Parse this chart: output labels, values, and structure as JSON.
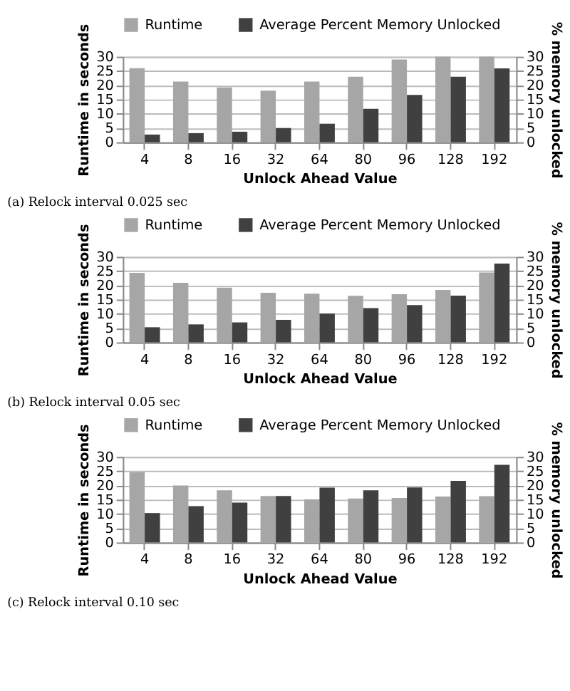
{
  "chart_data": [
    {
      "type": "bar",
      "categories": [
        "4",
        "8",
        "16",
        "32",
        "64",
        "80",
        "96",
        "128",
        "192"
      ],
      "xlabel": "Unlock Ahead Value",
      "ylabel": "Runtime in seconds",
      "y2label": "% memory unlocked",
      "ylim": [
        0,
        30
      ],
      "yticks": [
        0,
        5,
        10,
        15,
        20,
        25,
        30
      ],
      "y2lim": [
        0,
        30
      ],
      "y2ticks": [
        0,
        5,
        10,
        15,
        20,
        25,
        30
      ],
      "grid": "y",
      "legend": "top",
      "annotations": [
        "(a) Relock interval 0.025 sec"
      ],
      "series": [
        {
          "name": "Runtime",
          "color": "#a6a6a6",
          "values": [
            26,
            21.3,
            19.2,
            18.1,
            21.3,
            23,
            29,
            30,
            30
          ]
        },
        {
          "name": "Average Percent Memory Unlocked",
          "color": "#404040",
          "axis": "y2",
          "values": [
            2.7,
            3.2,
            3.7,
            5,
            6.5,
            11.7,
            16.6,
            23,
            25.9
          ]
        }
      ]
    },
    {
      "type": "bar",
      "categories": [
        "4",
        "8",
        "16",
        "32",
        "64",
        "80",
        "96",
        "128",
        "192"
      ],
      "xlabel": "Unlock Ahead Value",
      "ylabel": "Runtime in seconds",
      "y2label": "% memory unlocked",
      "ylim": [
        0,
        30
      ],
      "yticks": [
        0,
        5,
        10,
        15,
        20,
        25,
        30
      ],
      "y2lim": [
        0,
        30
      ],
      "y2ticks": [
        0,
        5,
        10,
        15,
        20,
        25,
        30
      ],
      "grid": "y",
      "legend": "top",
      "annotations": [
        "(b) Relock interval 0.05 sec"
      ],
      "series": [
        {
          "name": "Runtime",
          "color": "#a6a6a6",
          "values": [
            24.4,
            20.9,
            19.2,
            17.4,
            17.1,
            16.3,
            16.9,
            18.4,
            24.5
          ]
        },
        {
          "name": "Average Percent Memory Unlocked",
          "color": "#404040",
          "axis": "y2",
          "values": [
            5.3,
            6.3,
            7,
            7.9,
            10.1,
            12,
            13.1,
            16.4,
            27.6
          ]
        }
      ]
    },
    {
      "type": "bar",
      "categories": [
        "4",
        "8",
        "16",
        "32",
        "64",
        "80",
        "96",
        "128",
        "192"
      ],
      "xlabel": "Unlock Ahead Value",
      "ylabel": "Runtime in seconds",
      "y2label": "% memory unlocked",
      "ylim": [
        0,
        30
      ],
      "yticks": [
        0,
        5,
        10,
        15,
        20,
        25,
        30
      ],
      "y2lim": [
        0,
        30
      ],
      "y2ticks": [
        0,
        5,
        10,
        15,
        20,
        25,
        30
      ],
      "grid": "y",
      "legend": "top",
      "annotations": [
        "(c) Relock interval 0.10 sec"
      ],
      "series": [
        {
          "name": "Runtime",
          "color": "#a6a6a6",
          "values": [
            24.6,
            20,
            18.3,
            16.3,
            15.1,
            15.4,
            15.6,
            16.1,
            16.2
          ]
        },
        {
          "name": "Average Percent Memory Unlocked",
          "color": "#404040",
          "axis": "y2",
          "values": [
            10.3,
            12.7,
            14,
            16.3,
            19.2,
            18.3,
            19.3,
            21.6,
            27.2
          ]
        }
      ]
    }
  ]
}
